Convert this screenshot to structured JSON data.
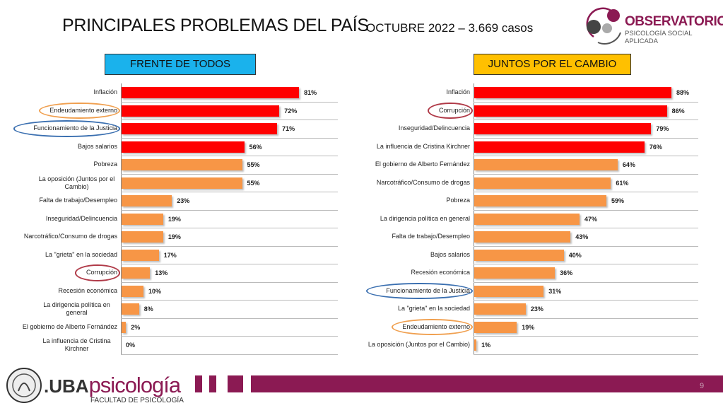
{
  "header": {
    "title": "PRINCIPALES PROBLEMAS DEL PAÍS",
    "subtitle": "OCTUBRE 2022 – 3.669 casos",
    "logo": {
      "name": "OBSERVATORIO",
      "tagline": "PSICOLOGÍA SOCIAL APLICADA"
    }
  },
  "colors": {
    "red": "#ff0000",
    "orange": "#f79646",
    "blue_header": "#1ab2ec",
    "yellow_header": "#ffc000",
    "brand": "#8b1a53",
    "ring_orange": "#f0a050",
    "ring_blue": "#3a6fb0",
    "ring_red": "#b03a48"
  },
  "chart_data": [
    {
      "type": "bar",
      "orientation": "horizontal",
      "title": "FRENTE DE TODOS",
      "unit": "%",
      "xlim": [
        0,
        100
      ],
      "categories": [
        "Inflación",
        "Endeudamiento externo",
        "Funcionamiento de la Justicia",
        "Bajos salarios",
        "Pobreza",
        "La oposición (Juntos por el Cambio)",
        "Falta de trabajo/Desempleo",
        "Inseguridad/Delincuencia",
        "Narcotráfico/Consumo de drogas",
        "La \"grieta\" en la sociedad",
        "Corrupción",
        "Recesión económica",
        "La dirigencia política en general",
        "El gobierno de Alberto Fernández",
        "La influencia de Cristina Kirchner"
      ],
      "values": [
        81,
        72,
        71,
        56,
        55,
        55,
        23,
        19,
        19,
        17,
        13,
        10,
        8,
        2,
        0
      ],
      "labels": [
        "81%",
        "72%",
        "71%",
        "56%",
        "55%",
        "55%",
        "23%",
        "19%",
        "19%",
        "17%",
        "13%",
        "10%",
        "8%",
        "2%",
        "0%"
      ],
      "top_highlighted": 4,
      "circled": {
        "1": "ring_orange",
        "2": "ring_blue",
        "10": "ring_red"
      }
    },
    {
      "type": "bar",
      "orientation": "horizontal",
      "title": "JUNTOS POR EL CAMBIO",
      "unit": "%",
      "xlim": [
        0,
        100
      ],
      "categories": [
        "Inflación",
        "Corrupción",
        "Inseguridad/Delincuencia",
        "La influencia de Cristina Kirchner",
        "El gobierno de Alberto Fernández",
        "Narcotráfico/Consumo de drogas",
        "Pobreza",
        "La dirigencia política en general",
        "Falta de trabajo/Desempleo",
        "Bajos salarios",
        "Recesión económica",
        "Funcionamiento de la Justicia",
        "La \"grieta\" en la sociedad",
        "Endeudamiento externo",
        "La oposición (Juntos por el Cambio)"
      ],
      "values": [
        88,
        86,
        79,
        76,
        64,
        61,
        59,
        47,
        43,
        40,
        36,
        31,
        23,
        19,
        1
      ],
      "labels": [
        "88%",
        "86%",
        "79%",
        "76%",
        "64%",
        "61%",
        "59%",
        "47%",
        "43%",
        "40%",
        "36%",
        "31%",
        "23%",
        "19%",
        "1%"
      ],
      "top_highlighted": 4,
      "circled": {
        "1": "ring_red",
        "11": "ring_blue",
        "13": "ring_orange"
      }
    }
  ],
  "footer": {
    "brand_prefix": ".UBA",
    "brand": "psicología",
    "faculty": "FACULTAD DE PSICOLOGÍA",
    "page": "9"
  }
}
